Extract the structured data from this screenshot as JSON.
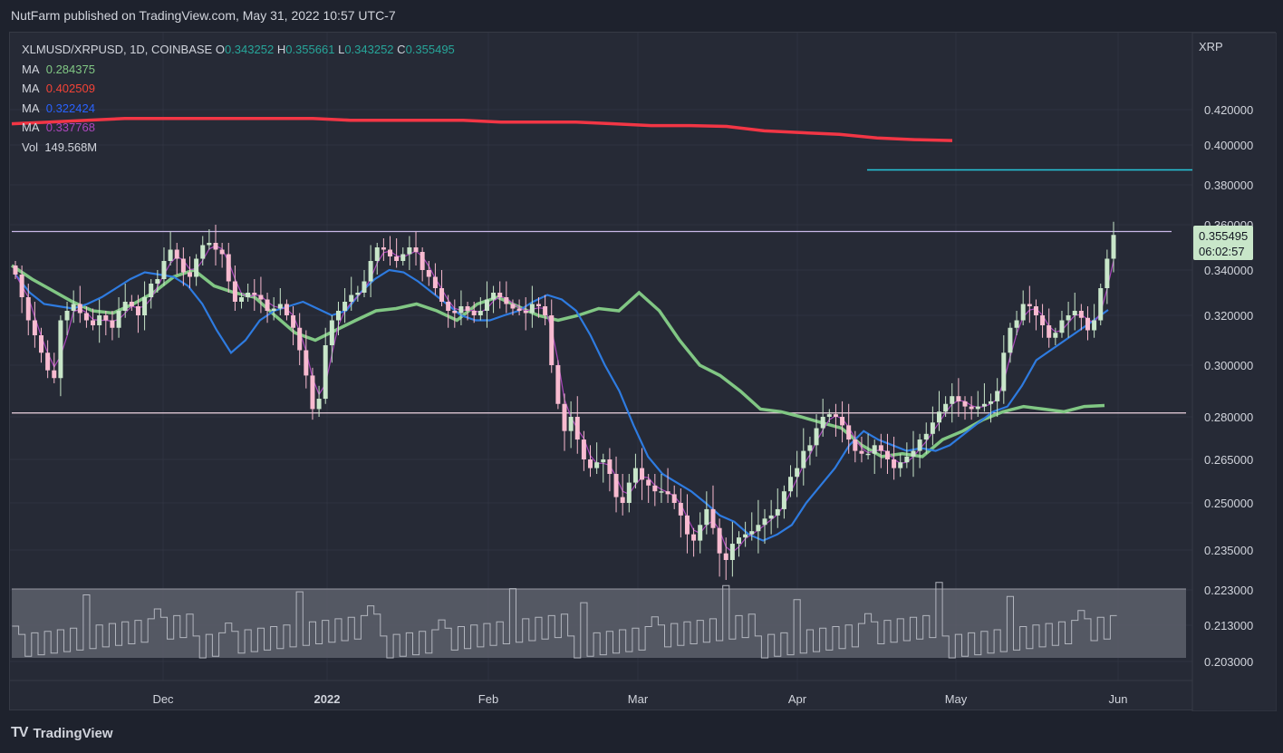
{
  "header": {
    "published": "NutFarm published on TradingView.com, May 31, 2022 10:57 UTC-7"
  },
  "legend": {
    "symbol": "XLMUSD/XRPUSD, 1D, COINBASE",
    "o_label": "O",
    "o_value": "0.343252",
    "h_label": "H",
    "h_value": "0.355661",
    "l_label": "L",
    "l_value": "0.343252",
    "c_label": "C",
    "c_value": "0.355495",
    "ma": [
      {
        "label": "MA",
        "value": "0.284375",
        "color": "#81c784"
      },
      {
        "label": "MA",
        "value": "0.402509",
        "color": "#f44336"
      },
      {
        "label": "MA",
        "value": "0.322424",
        "color": "#2962ff"
      },
      {
        "label": "MA",
        "value": "0.337768",
        "color": "#ab47bc"
      }
    ],
    "vol_label": "Vol",
    "vol_value": "149.568M"
  },
  "colors": {
    "bull": "#c8e6c9",
    "bear": "#f8bbd0",
    "ma200": "#81c784",
    "ma_red": "#f23645",
    "ma_blue": "#2e7be0",
    "ma_purple": "#ab47bc",
    "cyan": "#26c6da",
    "hline": "#c9b8e8",
    "price_badge": "#c8e6c9"
  },
  "footer": {
    "brand": "TradingView",
    "logo": "TV"
  },
  "chart_data": {
    "type": "candlestick",
    "title": "XLMUSD/XRPUSD, 1D, COINBASE",
    "currency_label": "XRP",
    "y_ticks": [
      "0.420000",
      "0.400000",
      "0.380000",
      "0.360000",
      "0.340000",
      "0.320000",
      "0.300000",
      "0.280000",
      "0.265000",
      "0.250000",
      "0.235000",
      "0.223000",
      "0.213000",
      "0.203000"
    ],
    "x_ticks": [
      "Dec",
      "2022",
      "Feb",
      "Mar",
      "Apr",
      "May",
      "Jun"
    ],
    "last_price": "0.355495",
    "countdown": "06:02:57",
    "series": [
      {
        "name": "close",
        "values": [
          0.338,
          0.328,
          0.318,
          0.312,
          0.305,
          0.298,
          0.295,
          0.318,
          0.322,
          0.325,
          0.321,
          0.318,
          0.316,
          0.32,
          0.318,
          0.315,
          0.322,
          0.326,
          0.324,
          0.32,
          0.328,
          0.334,
          0.336,
          0.344,
          0.349,
          0.345,
          0.339,
          0.337,
          0.345,
          0.351,
          0.352,
          0.349,
          0.347,
          0.335,
          0.326,
          0.328,
          0.33,
          0.329,
          0.327,
          0.322,
          0.323,
          0.325,
          0.32,
          0.315,
          0.306,
          0.296,
          0.283,
          0.287,
          0.308,
          0.318,
          0.322,
          0.326,
          0.329,
          0.33,
          0.335,
          0.344,
          0.35,
          0.349,
          0.346,
          0.344,
          0.347,
          0.35,
          0.348,
          0.34,
          0.337,
          0.332,
          0.326,
          0.322,
          0.321,
          0.324,
          0.322,
          0.32,
          0.322,
          0.327,
          0.33,
          0.328,
          0.325,
          0.323,
          0.322,
          0.321,
          0.325,
          0.324,
          0.32,
          0.3,
          0.285,
          0.275,
          0.28,
          0.272,
          0.265,
          0.262,
          0.264,
          0.265,
          0.26,
          0.252,
          0.25,
          0.257,
          0.262,
          0.258,
          0.256,
          0.254,
          0.254,
          0.253,
          0.25,
          0.246,
          0.24,
          0.238,
          0.243,
          0.248,
          0.242,
          0.234,
          0.232,
          0.237,
          0.239,
          0.24,
          0.241,
          0.243,
          0.245,
          0.246,
          0.248,
          0.254,
          0.259,
          0.262,
          0.268,
          0.27,
          0.276,
          0.28,
          0.281,
          0.28,
          0.277,
          0.272,
          0.268,
          0.267,
          0.267,
          0.27,
          0.268,
          0.265,
          0.262,
          0.264,
          0.266,
          0.268,
          0.272,
          0.274,
          0.278,
          0.282,
          0.285,
          0.288,
          0.286,
          0.284,
          0.283,
          0.284,
          0.285,
          0.286,
          0.29,
          0.305,
          0.315,
          0.318,
          0.325,
          0.324,
          0.32,
          0.316,
          0.311,
          0.313,
          0.318,
          0.32,
          0.322,
          0.319,
          0.314,
          0.318,
          0.332,
          0.345,
          0.3555
        ]
      },
      {
        "name": "MA 0.284375",
        "values": [
          0.342,
          0.336,
          0.331,
          0.326,
          0.322,
          0.321,
          0.325,
          0.33,
          0.337,
          0.34,
          0.333,
          0.33,
          0.328,
          0.32,
          0.313,
          0.31,
          0.314,
          0.318,
          0.322,
          0.323,
          0.325,
          0.322,
          0.318,
          0.325,
          0.328,
          0.324,
          0.32,
          0.318,
          0.32,
          0.323,
          0.322,
          0.33,
          0.322,
          0.31,
          0.3,
          0.296,
          0.29,
          0.283,
          0.282,
          0.28,
          0.278,
          0.276,
          0.27,
          0.266,
          0.267,
          0.266,
          0.272,
          0.275,
          0.279,
          0.282,
          0.284,
          0.283,
          0.282,
          0.284,
          0.2844
        ]
      },
      {
        "name": "MA 0.402509",
        "values": [
          0.412,
          0.413,
          0.414,
          0.415,
          0.415,
          0.415,
          0.415,
          0.415,
          0.415,
          0.414,
          0.414,
          0.414,
          0.414,
          0.413,
          0.413,
          0.413,
          0.412,
          0.411,
          0.411,
          0.4105,
          0.408,
          0.407,
          0.406,
          0.404,
          0.403,
          0.4025
        ]
      },
      {
        "name": "MA 0.322424",
        "values": [
          0.338,
          0.33,
          0.325,
          0.324,
          0.323,
          0.325,
          0.328,
          0.332,
          0.336,
          0.339,
          0.338,
          0.337,
          0.333,
          0.325,
          0.314,
          0.305,
          0.31,
          0.318,
          0.322,
          0.324,
          0.326,
          0.323,
          0.32,
          0.322,
          0.33,
          0.336,
          0.34,
          0.339,
          0.335,
          0.33,
          0.325,
          0.32,
          0.318,
          0.318,
          0.32,
          0.322,
          0.326,
          0.329,
          0.327,
          0.322,
          0.312,
          0.3,
          0.29,
          0.277,
          0.266,
          0.26,
          0.257,
          0.254,
          0.25,
          0.246,
          0.244,
          0.24,
          0.238,
          0.24,
          0.243,
          0.25,
          0.256,
          0.262,
          0.27,
          0.275,
          0.272,
          0.27,
          0.268,
          0.269,
          0.268,
          0.27,
          0.274,
          0.278,
          0.282,
          0.284,
          0.292,
          0.302,
          0.306,
          0.31,
          0.314,
          0.318,
          0.3224
        ]
      },
      {
        "name": "MA 0.337768",
        "values": []
      }
    ],
    "levels": [
      {
        "name": "resistance",
        "value": 0.357
      },
      {
        "name": "support",
        "value": 0.2815
      },
      {
        "name": "cyan level",
        "value": 0.3875
      }
    ]
  }
}
